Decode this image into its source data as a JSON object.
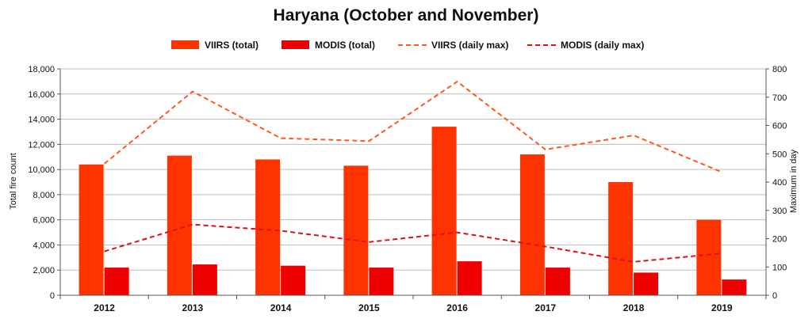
{
  "chart_data": {
    "type": "bar",
    "title": "Haryana (October and November)",
    "categories": [
      "2012",
      "2013",
      "2014",
      "2015",
      "2016",
      "2017",
      "2018",
      "2019"
    ],
    "ylabel": "Total fire count",
    "y2label": "Maximum in day",
    "ylim": [
      0,
      18000
    ],
    "y2lim": [
      0,
      800
    ],
    "yticks": [
      "0",
      "2,000",
      "4,000",
      "6,000",
      "8,000",
      "10,000",
      "12,000",
      "14,000",
      "16,000",
      "18,000"
    ],
    "y2ticks": [
      "0",
      "100",
      "200",
      "300",
      "400",
      "500",
      "600",
      "700",
      "800"
    ],
    "grid": true,
    "legend_position": "top",
    "series": [
      {
        "name": "VIIRS (total)",
        "kind": "bar",
        "axis": "left",
        "color": "#ff3300",
        "values": [
          10400,
          11100,
          10800,
          10300,
          13400,
          11200,
          9000,
          6000
        ]
      },
      {
        "name": "MODIS (total)",
        "kind": "bar",
        "axis": "left",
        "color": "#ee0000",
        "values": [
          2200,
          2450,
          2350,
          2200,
          2700,
          2200,
          1800,
          1250
        ]
      },
      {
        "name": "VIIRS (daily max)",
        "kind": "line",
        "style": "dashed",
        "axis": "right",
        "color": "#ff5a1a",
        "values": [
          465,
          720,
          555,
          545,
          755,
          515,
          565,
          435
        ]
      },
      {
        "name": "MODIS (daily max)",
        "kind": "line",
        "style": "dashed",
        "axis": "right",
        "color": "#dd1111",
        "values": [
          155,
          250,
          228,
          188,
          222,
          172,
          118,
          148
        ]
      }
    ]
  }
}
